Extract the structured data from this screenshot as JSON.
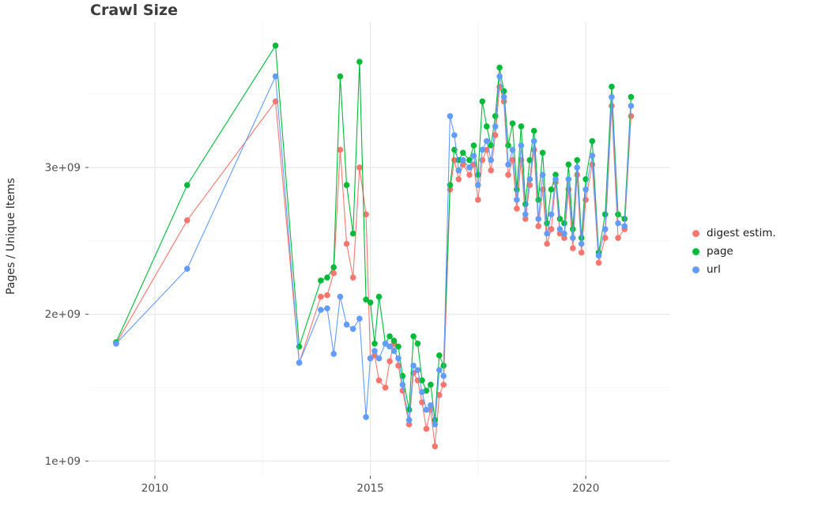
{
  "chart_data": {
    "type": "line",
    "title": "Crawl Size",
    "xlabel": "",
    "ylabel": "Pages / Unique Items",
    "value_unit": "billions (1e9) of pages / unique items",
    "grid": true,
    "legend_position": "right",
    "xlim": [
      2008.46,
      2021.96
    ],
    "ylim": [
      0.9,
      3.99
    ],
    "x_major_ticks": [
      {
        "value": 2010,
        "label": "2010"
      },
      {
        "value": 2015,
        "label": "2015"
      },
      {
        "value": 2020,
        "label": "2020"
      }
    ],
    "x_minor_ticks": [
      2012.5,
      2017.5
    ],
    "y_major_ticks": [
      {
        "value": 1,
        "label": "1e+09"
      },
      {
        "value": 2,
        "label": "2e+09"
      },
      {
        "value": 3,
        "label": "3e+09"
      }
    ],
    "y_minor_ticks": [
      1.5,
      2.5,
      3.5
    ],
    "x": [
      2009.1,
      2010.75,
      2012.8,
      2013.35,
      2013.85,
      2014.0,
      2014.15,
      2014.3,
      2014.45,
      2014.6,
      2014.75,
      2014.9,
      2015.0,
      2015.1,
      2015.2,
      2015.35,
      2015.45,
      2015.55,
      2015.65,
      2015.75,
      2015.9,
      2016.0,
      2016.1,
      2016.2,
      2016.3,
      2016.4,
      2016.5,
      2016.6,
      2016.7,
      2016.85,
      2016.95,
      2017.05,
      2017.15,
      2017.3,
      2017.4,
      2017.5,
      2017.6,
      2017.7,
      2017.8,
      2017.9,
      2018.0,
      2018.1,
      2018.2,
      2018.3,
      2018.4,
      2018.5,
      2018.6,
      2018.7,
      2018.8,
      2018.9,
      2019.0,
      2019.1,
      2019.2,
      2019.3,
      2019.4,
      2019.5,
      2019.6,
      2019.7,
      2019.8,
      2019.9,
      2020.0,
      2020.15,
      2020.3,
      2020.45,
      2020.6,
      2020.75,
      2020.9,
      2021.05
    ],
    "series": [
      {
        "name": "digest estim.",
        "color": "#F8766D",
        "values": [
          1.8,
          2.64,
          3.45,
          1.67,
          2.12,
          2.13,
          2.28,
          3.12,
          2.48,
          2.25,
          3.0,
          2.68,
          1.7,
          1.72,
          1.55,
          1.5,
          1.68,
          1.8,
          1.65,
          1.48,
          1.25,
          1.6,
          1.55,
          1.4,
          1.22,
          1.35,
          1.1,
          1.45,
          1.52,
          2.85,
          3.05,
          2.92,
          3.02,
          2.95,
          3.02,
          2.78,
          3.05,
          3.12,
          2.98,
          3.22,
          3.55,
          3.45,
          2.95,
          3.05,
          2.72,
          3.05,
          2.65,
          2.88,
          3.12,
          2.6,
          2.85,
          2.48,
          2.58,
          2.9,
          2.55,
          2.52,
          2.85,
          2.45,
          2.95,
          2.42,
          2.78,
          3.02,
          2.35,
          2.52,
          3.42,
          2.52,
          2.58,
          3.35
        ]
      },
      {
        "name": "page",
        "color": "#00BA38",
        "values": [
          1.81,
          2.88,
          3.83,
          1.78,
          2.23,
          2.25,
          2.32,
          3.62,
          2.88,
          2.55,
          3.72,
          2.1,
          2.08,
          1.8,
          2.12,
          1.8,
          1.85,
          1.82,
          1.78,
          1.58,
          1.35,
          1.85,
          1.8,
          1.55,
          1.48,
          1.52,
          1.28,
          1.72,
          1.65,
          2.88,
          3.12,
          3.05,
          3.1,
          3.05,
          3.15,
          2.95,
          3.45,
          3.28,
          3.15,
          3.35,
          3.68,
          3.52,
          3.15,
          3.3,
          2.85,
          3.28,
          2.75,
          3.05,
          3.25,
          2.78,
          3.1,
          2.62,
          2.85,
          2.95,
          2.65,
          2.62,
          3.02,
          2.58,
          3.05,
          2.52,
          2.92,
          3.18,
          2.42,
          2.68,
          3.55,
          2.68,
          2.65,
          3.48
        ]
      },
      {
        "name": "url",
        "color": "#619CFF",
        "values": [
          1.8,
          2.31,
          3.62,
          1.67,
          2.03,
          2.04,
          1.73,
          2.12,
          1.93,
          1.9,
          1.97,
          1.3,
          1.7,
          1.75,
          1.7,
          1.8,
          1.78,
          1.75,
          1.7,
          1.52,
          1.28,
          1.65,
          1.62,
          1.47,
          1.35,
          1.38,
          1.25,
          1.62,
          1.58,
          3.35,
          3.22,
          2.98,
          3.05,
          3.0,
          3.08,
          2.88,
          3.12,
          3.18,
          3.05,
          3.28,
          3.62,
          3.48,
          3.02,
          3.12,
          2.78,
          3.15,
          2.68,
          2.92,
          3.18,
          2.65,
          2.95,
          2.55,
          2.68,
          2.92,
          2.58,
          2.55,
          2.92,
          2.52,
          3.0,
          2.48,
          2.85,
          3.08,
          2.4,
          2.58,
          3.48,
          2.62,
          2.6,
          3.42
        ]
      }
    ]
  }
}
